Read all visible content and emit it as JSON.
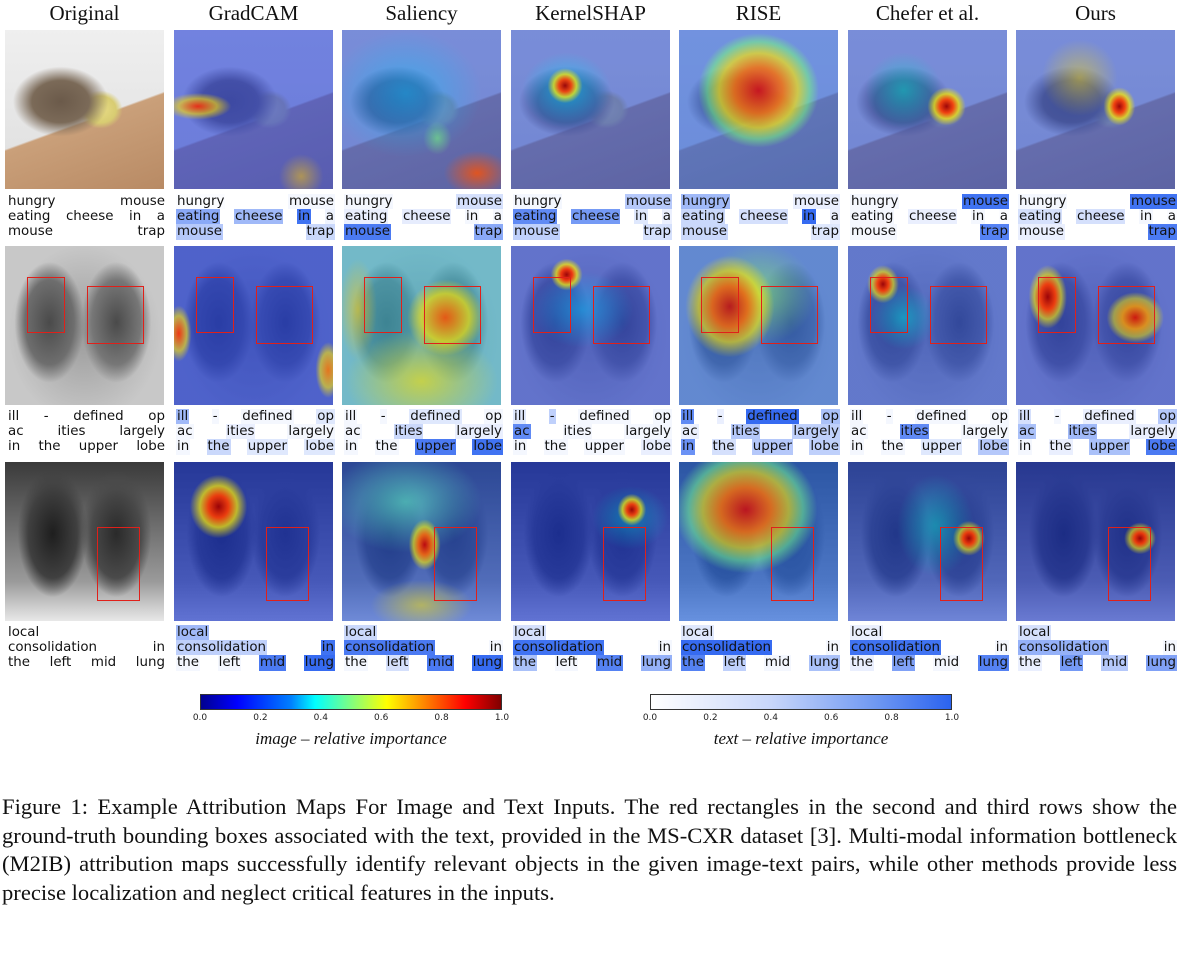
{
  "columns": [
    "Original",
    "GradCAM",
    "Saliency",
    "KernelSHAP",
    "RISE",
    "Chefer et al.",
    "Ours"
  ],
  "rows": [
    {
      "image": "mouse",
      "lines": [
        [
          "hungry",
          "mouse"
        ],
        [
          "eating",
          "cheese",
          "in",
          "a"
        ],
        [
          "mouse",
          "trap"
        ]
      ],
      "text_weights": [
        [
          [
            0,
            0
          ],
          [
            0,
            0,
            0,
            0
          ],
          [
            0,
            0
          ]
        ],
        [
          [
            0.02,
            0.05
          ],
          [
            0.55,
            0.45,
            0.9,
            0.08
          ],
          [
            0.35,
            0.25
          ]
        ],
        [
          [
            0.05,
            0.2
          ],
          [
            0.1,
            0.12,
            0.05,
            0.05
          ],
          [
            0.85,
            0.55
          ]
        ],
        [
          [
            0.05,
            0.35
          ],
          [
            0.75,
            0.65,
            0.15,
            0.1
          ],
          [
            0.3,
            0.2
          ]
        ],
        [
          [
            0.45,
            0.1
          ],
          [
            0.25,
            0.2,
            0.95,
            0.1
          ],
          [
            0.25,
            0.15
          ]
        ],
        [
          [
            0.05,
            0.9
          ],
          [
            0.05,
            0.1,
            0.05,
            0.02
          ],
          [
            0.05,
            0.8
          ]
        ],
        [
          [
            0.05,
            0.9
          ],
          [
            0.2,
            0.2,
            0.05,
            0.02
          ],
          [
            0.1,
            0.85
          ]
        ]
      ]
    },
    {
      "image": "xray1",
      "lines": [
        [
          "ill",
          "-",
          "defined",
          "op"
        ],
        [
          "ac",
          "ities",
          "largely"
        ],
        [
          "in",
          "the",
          "upper",
          "lobe"
        ]
      ],
      "text_weights": [
        [
          [
            0,
            0,
            0,
            0
          ],
          [
            0,
            0,
            0
          ],
          [
            0,
            0,
            0,
            0
          ]
        ],
        [
          [
            0.45,
            0.05,
            0.05,
            0.15
          ],
          [
            0.05,
            0.1,
            0.05
          ],
          [
            0.05,
            0.25,
            0.15,
            0.15
          ]
        ],
        [
          [
            0.05,
            0.05,
            0.15,
            0.05
          ],
          [
            0.05,
            0.25,
            0.1
          ],
          [
            0.05,
            0.05,
            0.85,
            0.9
          ]
        ],
        [
          [
            0.15,
            0.3,
            0.05,
            0.05
          ],
          [
            0.75,
            0.05,
            0.05
          ],
          [
            0.05,
            0.05,
            0.05,
            0.1
          ]
        ],
        [
          [
            0.75,
            0.1,
            0.95,
            0.4
          ],
          [
            0.1,
            0.35,
            0.3
          ],
          [
            0.7,
            0.2,
            0.35,
            0.3
          ]
        ],
        [
          [
            0.05,
            0.05,
            0.05,
            0.05
          ],
          [
            0.05,
            0.75,
            0.05
          ],
          [
            0.05,
            0.05,
            0.15,
            0.35
          ]
        ],
        [
          [
            0.2,
            0.05,
            0.1,
            0.35
          ],
          [
            0.4,
            0.45,
            0.1
          ],
          [
            0.05,
            0.1,
            0.4,
            0.85
          ]
        ]
      ]
    },
    {
      "image": "xray2",
      "lines": [
        [
          "local"
        ],
        [
          "consolidation",
          "in"
        ],
        [
          "the",
          "left",
          "mid",
          "lung"
        ]
      ],
      "text_weights": [
        [
          [
            0
          ],
          [
            0,
            0
          ],
          [
            0,
            0,
            0,
            0
          ]
        ],
        [
          [
            0.45
          ],
          [
            0.3,
            0.9
          ],
          [
            0.05,
            0.05,
            0.85,
            0.95
          ]
        ],
        [
          [
            0.25
          ],
          [
            0.85,
            0.05
          ],
          [
            0.05,
            0.2,
            0.85,
            0.95
          ]
        ],
        [
          [
            0.2
          ],
          [
            0.9,
            0.05
          ],
          [
            0.4,
            0.05,
            0.8,
            0.5
          ]
        ],
        [
          [
            0.15
          ],
          [
            0.95,
            0.05
          ],
          [
            0.8,
            0.3,
            0.05,
            0.4
          ]
        ],
        [
          [
            0.1
          ],
          [
            0.9,
            0.05
          ],
          [
            0.1,
            0.6,
            0.05,
            0.8
          ]
        ],
        [
          [
            0.2
          ],
          [
            0.5,
            0.05
          ],
          [
            0.1,
            0.65,
            0.35,
            0.6
          ]
        ]
      ]
    }
  ],
  "colorbars": {
    "image": {
      "label": "image – relative importance",
      "ticks": [
        "0.0",
        "0.2",
        "0.4",
        "0.6",
        "0.8",
        "1.0"
      ],
      "colormap": "jet"
    },
    "text": {
      "label": "text – relative importance",
      "ticks": [
        "0.0",
        "0.2",
        "0.4",
        "0.6",
        "0.8",
        "1.0"
      ],
      "colormap": "white-to-blue"
    }
  },
  "caption": "Figure 1: Example Attribution Maps For Image and Text Inputs. The red rectangles in the second and third rows show the ground-truth bounding boxes associated with the text, provided in the MS-CXR dataset [3]. Multi-modal information bottleneck (M2IB) attribution maps successfully identify relevant objects in the given image-text pairs, while other methods provide less precise localization and neglect critical features in the inputs.",
  "colors": {
    "bbox": "#e0201a",
    "text_highlight": "#2b63f0"
  }
}
